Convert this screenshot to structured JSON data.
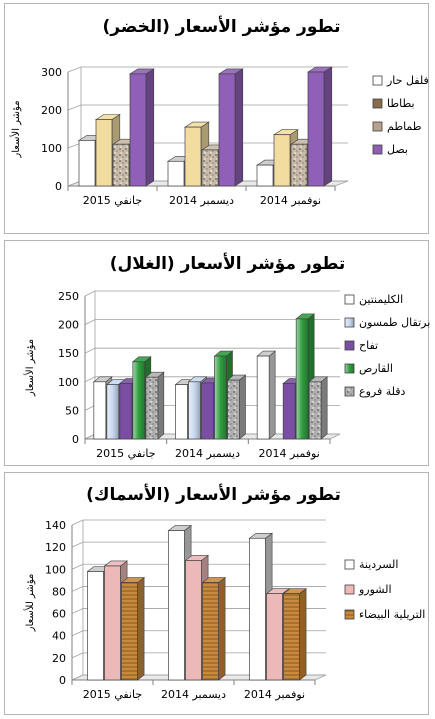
{
  "chart_data": [
    {
      "type": "bar",
      "title": "تطور مؤشر الأسعار (الخضر)",
      "ylabel": "مؤشر الأسعار",
      "categories": [
        "جانفي 2015",
        "ديسمبر 2014",
        "نوفمبر 2014"
      ],
      "ylim": [
        0,
        300
      ],
      "yticks": [
        0,
        100,
        200,
        300
      ],
      "legend_position": "right",
      "series": [
        {
          "name": "فلفل حار",
          "values": [
            120,
            65,
            55
          ],
          "color": "#ffffff",
          "pattern": "plain"
        },
        {
          "name": "بطاطا",
          "values": [
            175,
            155,
            135
          ],
          "color": "#f3dca0",
          "pattern": "plain"
        },
        {
          "name": "طماطم",
          "values": [
            110,
            95,
            110
          ],
          "color": "#c6b9a8",
          "pattern": "speckle"
        },
        {
          "name": "بصل",
          "values": [
            295,
            295,
            300
          ],
          "color": "#9060b8",
          "pattern": "plain"
        }
      ],
      "legend_colors": [
        "#ffffff",
        "#8a6a4a",
        "#b8a28c",
        "#8f5fb5"
      ]
    },
    {
      "type": "bar",
      "title": "تطور مؤشر الأسعار (الغلال)",
      "ylabel": "مؤشر الأسعار",
      "categories": [
        "جانفي 2015",
        "ديسمبر 2014",
        "نوفمبر 2014"
      ],
      "ylim": [
        0,
        250
      ],
      "yticks": [
        0,
        50,
        100,
        150,
        200,
        250
      ],
      "legend_position": "right",
      "series": [
        {
          "name": "الكليمنتين",
          "values": [
            100,
            95,
            145
          ],
          "color": "#ffffff",
          "pattern": "plain"
        },
        {
          "name": "برتقال طمسون",
          "values": [
            95,
            100,
            0
          ],
          "color": "#c8d8f0",
          "pattern": "gradient"
        },
        {
          "name": "تفاح",
          "values": [
            97,
            98,
            97
          ],
          "color": "#7a4fa3",
          "pattern": "plain"
        },
        {
          "name": "القارص",
          "values": [
            135,
            145,
            210
          ],
          "color": "#2e9e3e",
          "pattern": "gradient"
        },
        {
          "name": "دقلة فروع",
          "values": [
            108,
            103,
            100
          ],
          "color": "#b0b0b0",
          "pattern": "speckle"
        }
      ]
    },
    {
      "type": "bar",
      "title": "تطور مؤشر الأسعار (الأسماك)",
      "ylabel": "مؤشر للأسعار",
      "categories": [
        "جانفي 2015",
        "ديسمبر 2014",
        "نوفمبر 2014"
      ],
      "ylim": [
        0,
        140
      ],
      "yticks": [
        0,
        20,
        40,
        60,
        80,
        100,
        120,
        140
      ],
      "legend_position": "right",
      "series": [
        {
          "name": "السردينة",
          "values": [
            98,
            135,
            128
          ],
          "color": "#ffffff",
          "pattern": "plain"
        },
        {
          "name": "الشورو",
          "values": [
            103,
            108,
            78
          ],
          "color": "#ecb8b8",
          "pattern": "plain"
        },
        {
          "name": "التريلية البيضاء",
          "values": [
            88,
            88,
            78
          ],
          "color": "#c98a3c",
          "pattern": "lines"
        }
      ]
    }
  ]
}
